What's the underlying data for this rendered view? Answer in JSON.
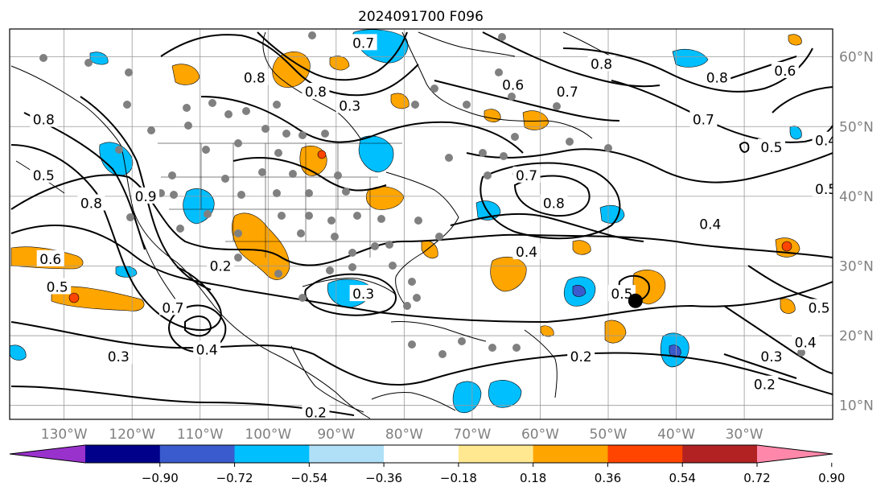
{
  "title": "2024091700 F096",
  "map": {
    "lon_range": [
      -138,
      -17
    ],
    "lat_range": [
      8,
      64
    ],
    "lon_ticks": [
      {
        "lon": -130,
        "label": "130°W"
      },
      {
        "lon": -120,
        "label": "120°W"
      },
      {
        "lon": -110,
        "label": "110°W"
      },
      {
        "lon": -100,
        "label": "100°W"
      },
      {
        "lon": -90,
        "label": "90°W"
      },
      {
        "lon": -80,
        "label": "80°W"
      },
      {
        "lon": -70,
        "label": "70°W"
      },
      {
        "lon": -60,
        "label": "60°W"
      },
      {
        "lon": -50,
        "label": "50°W"
      },
      {
        "lon": -40,
        "label": "40°W"
      },
      {
        "lon": -30,
        "label": "30°W"
      }
    ],
    "lat_ticks": [
      {
        "lat": 60,
        "label": "60°N"
      },
      {
        "lat": 50,
        "label": "50°N"
      },
      {
        "lat": 40,
        "label": "40°N"
      },
      {
        "lat": 30,
        "label": "30°N"
      },
      {
        "lat": 20,
        "label": "20°N"
      },
      {
        "lat": 10,
        "label": "10°N"
      }
    ],
    "gridlines": true,
    "contour_labels": [
      {
        "text": "0.8",
        "lon": -102,
        "lat": 57
      },
      {
        "text": "0.8",
        "lon": -93,
        "lat": 55
      },
      {
        "text": "0.3",
        "lon": -88,
        "lat": 53
      },
      {
        "text": "0.7",
        "lon": -86,
        "lat": 62
      },
      {
        "text": "0.6",
        "lon": -64,
        "lat": 56
      },
      {
        "text": "0.7",
        "lon": -56,
        "lat": 55
      },
      {
        "text": "0.8",
        "lon": -51,
        "lat": 59
      },
      {
        "text": "0.8",
        "lon": -34,
        "lat": 57
      },
      {
        "text": "0.6",
        "lon": -24,
        "lat": 58
      },
      {
        "text": "0.7",
        "lon": -36,
        "lat": 51
      },
      {
        "text": "0.5",
        "lon": -26,
        "lat": 47
      },
      {
        "text": "0.5",
        "lon": -18,
        "lat": 41
      },
      {
        "text": "0.4",
        "lon": -18,
        "lat": 48
      },
      {
        "text": "0.7",
        "lon": -62,
        "lat": 43
      },
      {
        "text": "0.8",
        "lon": -58,
        "lat": 39
      },
      {
        "text": "0.4",
        "lon": -35,
        "lat": 36
      },
      {
        "text": "0.4",
        "lon": -62,
        "lat": 32
      },
      {
        "text": "0.5",
        "lon": -48,
        "lat": 26
      },
      {
        "text": "0.2",
        "lon": -54,
        "lat": 17
      },
      {
        "text": "0.3",
        "lon": -86,
        "lat": 26
      },
      {
        "text": "0.3",
        "lon": -26,
        "lat": 17
      },
      {
        "text": "0.4",
        "lon": -21,
        "lat": 19
      },
      {
        "text": "0.2",
        "lon": -27,
        "lat": 13
      },
      {
        "text": "0.5",
        "lon": -19,
        "lat": 24
      },
      {
        "text": "0.8",
        "lon": -133,
        "lat": 51
      },
      {
        "text": "0.5",
        "lon": -133,
        "lat": 43
      },
      {
        "text": "0.8",
        "lon": -126,
        "lat": 39
      },
      {
        "text": "0.6",
        "lon": -132,
        "lat": 31
      },
      {
        "text": "0.5",
        "lon": -131,
        "lat": 27
      },
      {
        "text": "0.7",
        "lon": -114,
        "lat": 24
      },
      {
        "text": "0.2",
        "lon": -107,
        "lat": 30
      },
      {
        "text": "0.3",
        "lon": -122,
        "lat": 17
      },
      {
        "text": "0.4",
        "lon": -109,
        "lat": 18
      },
      {
        "text": "0.2",
        "lon": -93,
        "lat": 9
      },
      {
        "text": "0.9",
        "lon": -118,
        "lat": 40
      }
    ],
    "markers": {
      "lon": -46,
      "lat": 25
    }
  },
  "colorbar": {
    "colors": [
      "#9932cc",
      "#00008b",
      "#3a5bcd",
      "#00bfff",
      "#b0e0f8",
      "#ffffff",
      "#ffe890",
      "#ffa500",
      "#ff4500",
      "#b22222",
      "#ff88aa"
    ],
    "labels": [
      "−0.90",
      "−0.72",
      "−0.54",
      "−0.36",
      "−0.18",
      "0.18",
      "0.36",
      "0.54",
      "0.72",
      "0.90"
    ]
  }
}
